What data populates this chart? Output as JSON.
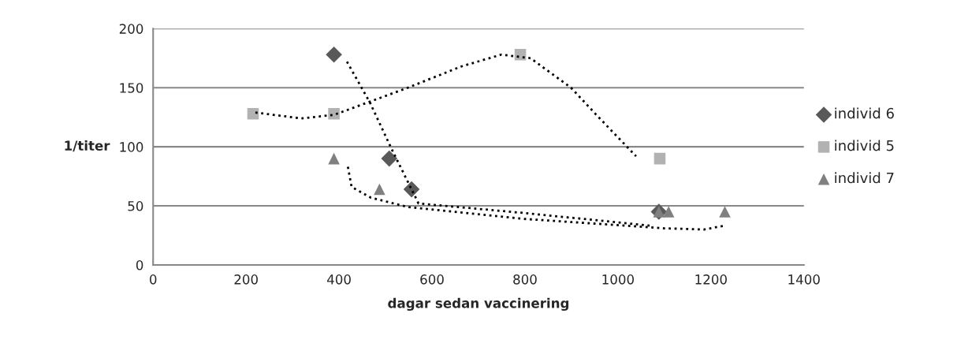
{
  "chart_data": {
    "type": "scatter",
    "xlabel": "dagar sedan vaccinering",
    "ylabel": "1/titer",
    "xlim": [
      0,
      1400
    ],
    "ylim": [
      0,
      200
    ],
    "xticks": [
      0,
      200,
      400,
      600,
      800,
      1000,
      1200,
      1400
    ],
    "yticks": [
      0,
      50,
      100,
      150,
      200
    ],
    "grid": "y",
    "legend": "right",
    "series": [
      {
        "name": "individ 6",
        "color": "#595959",
        "marker": "diamond",
        "x": [
          389,
          508,
          556,
          1088
        ],
        "values": [
          178,
          90,
          64,
          45
        ]
      },
      {
        "name": "individ 5",
        "color": "#b2b2b2",
        "marker": "square",
        "x": [
          215,
          389,
          790,
          1090
        ],
        "values": [
          128,
          128,
          178,
          90
        ]
      },
      {
        "name": "individ 7",
        "color": "#808080",
        "marker": "triangle",
        "x": [
          389,
          487,
          1088,
          1109,
          1230
        ],
        "values": [
          90,
          64,
          45,
          45,
          45
        ]
      },
      {
        "type": "line",
        "color": "#000000",
        "line_style": "dotted",
        "marker": "none",
        "x": [
          417,
          467,
          512,
          571,
          797,
          1076
        ],
        "values": [
          172,
          137,
          99,
          52,
          44,
          33
        ]
      },
      {
        "type": "line",
        "color": "#000000",
        "line_style": "dotted",
        "marker": "none",
        "x": [
          220,
          319,
          389,
          548,
          663,
          749,
          812,
          899,
          956,
          1039
        ],
        "values": [
          129,
          124,
          127,
          150,
          168,
          178,
          175,
          150,
          126,
          92
        ]
      },
      {
        "type": "line",
        "color": "#000000",
        "line_style": "dotted",
        "marker": "none",
        "x": [
          419,
          427,
          468,
          548,
          797,
          1099,
          1185,
          1226
        ],
        "values": [
          83,
          66,
          57,
          49,
          39,
          31,
          30,
          33
        ]
      }
    ]
  }
}
